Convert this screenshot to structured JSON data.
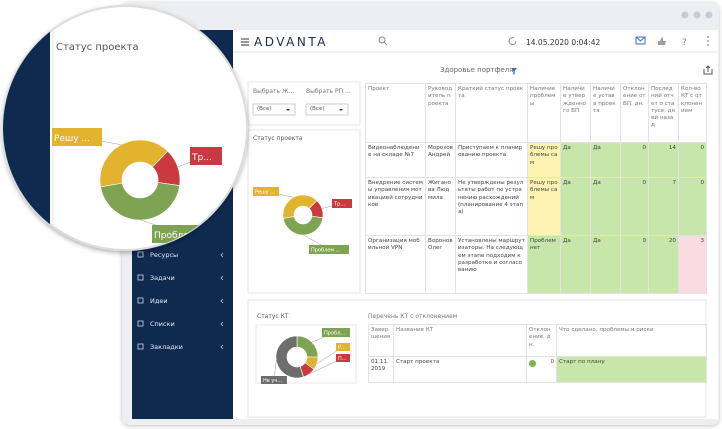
{
  "header": {
    "logo": "ADVANTA",
    "datetime": "14.05.2020 0:04:42"
  },
  "sidebar": {
    "items": [
      "Ресурсы",
      "Задачи",
      "Идеи",
      "Списки",
      "Закладки"
    ]
  },
  "dashboard": {
    "title": "Здоровье портфеля",
    "filters": [
      {
        "label": "Выбрать Ж...",
        "value": "(Все)"
      },
      {
        "label": "Выбрать РП ...",
        "value": "(Все)"
      }
    ]
  },
  "project_status": {
    "type": "pie",
    "title": "Статус проекта",
    "categories": [
      "Решу ...",
      "Тр...",
      "Проблем ..."
    ],
    "values": [
      40,
      15,
      45
    ],
    "colors": [
      "#e3b32f",
      "#c9393f",
      "#7ea453"
    ]
  },
  "magnifier": {
    "labels": [
      "Решу ...",
      "Тр...",
      "Пробле..."
    ]
  },
  "projects_table": {
    "columns": [
      "Проект",
      "Руководитель проекта",
      "Краткий статус проекта",
      "Наличие проблемы",
      "Наличие утвержденного БП",
      "Наличие устава проекта",
      "Отклонение от БП, дн.",
      "Последний отчет о статусе, дней назад",
      "Кол-во КТ с отклонением"
    ],
    "rows": [
      [
        "Видеонаблюдение на складе №7",
        "Морозов Андрей",
        "Приступаем к планированию проекта",
        "Решу проблемы сам",
        "Да",
        "Да",
        "0",
        "14",
        "0"
      ],
      [
        "Внедрение системы управления мотивацией сотрудников",
        "Жиганова Людмила",
        "Не утверждены результаты работ по устранению расхождений (планирование 4 этапа)",
        "Решу проблемы сам",
        "Да",
        "Да",
        "0",
        "7",
        "0"
      ],
      [
        "Организация мобильной VPN",
        "Воронов Олег",
        "Установлены маршрутизаторы. На следующем этапе подходим к разработке и согласованию",
        "Проблем нет",
        "Да",
        "Да",
        "0",
        "20",
        "3"
      ]
    ]
  },
  "kt_status": {
    "type": "pie",
    "title": "Статус КТ",
    "categories": [
      "Пробл...",
      "Р...",
      "П...",
      "Не уч..."
    ],
    "values": [
      25,
      10,
      10,
      55
    ],
    "colors": [
      "#7ea453",
      "#e3b32f",
      "#c9393f",
      "#6e6e6e"
    ]
  },
  "kt_table": {
    "title": "Перечень КТ с отклонением",
    "columns": [
      "Завершения",
      "Название КТ",
      "Отклонение, дн.",
      "Что сделано, проблемы и риски"
    ],
    "rows": [
      [
        "01.11.2019",
        "Старт проекта",
        "0",
        "Старт по плану"
      ]
    ]
  }
}
